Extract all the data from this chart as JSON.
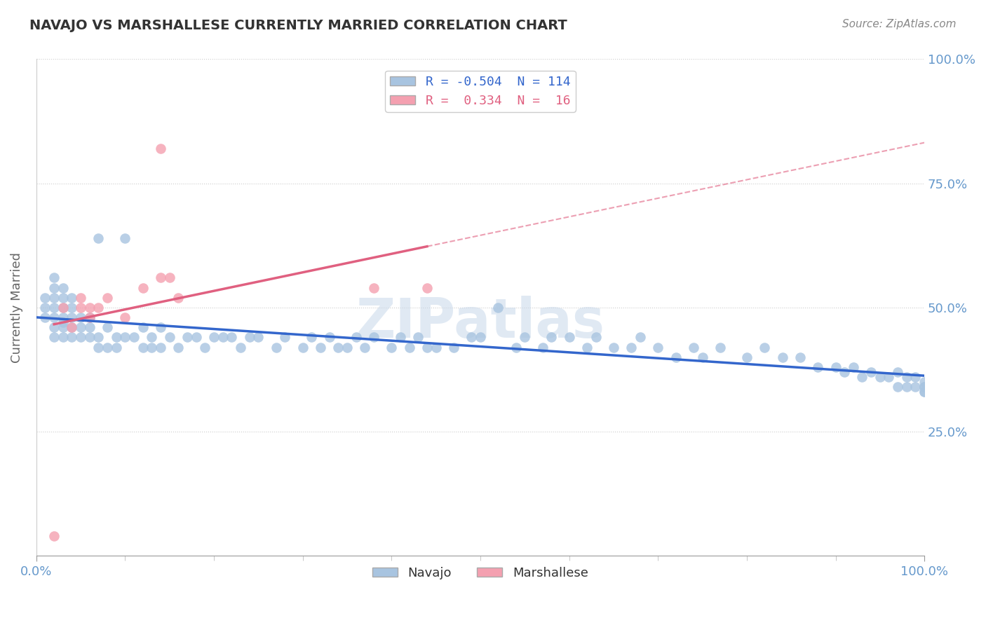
{
  "title": "NAVAJO VS MARSHALLESE CURRENTLY MARRIED CORRELATION CHART",
  "source": "Source: ZipAtlas.com",
  "ylabel": "Currently Married",
  "xlim": [
    0.0,
    1.0
  ],
  "ylim": [
    0.0,
    1.0
  ],
  "ytick_positions": [
    0.25,
    0.5,
    0.75,
    1.0
  ],
  "ytick_labels": [
    "25.0%",
    "50.0%",
    "75.0%",
    "100.0%"
  ],
  "navajo_R": -0.504,
  "navajo_N": 114,
  "marshallese_R": 0.334,
  "marshallese_N": 16,
  "navajo_color": "#a8c4e0",
  "marshallese_color": "#f4a0b0",
  "navajo_line_color": "#3366cc",
  "marshallese_line_color": "#e06080",
  "background_color": "#ffffff",
  "grid_color": "#cccccc",
  "title_color": "#333333",
  "axis_label_color": "#6699cc",
  "watermark": "ZIPatlas",
  "navajo_x": [
    0.01,
    0.01,
    0.01,
    0.02,
    0.02,
    0.02,
    0.02,
    0.02,
    0.02,
    0.02,
    0.03,
    0.03,
    0.03,
    0.03,
    0.03,
    0.03,
    0.03,
    0.04,
    0.04,
    0.04,
    0.04,
    0.04,
    0.05,
    0.05,
    0.05,
    0.06,
    0.06,
    0.06,
    0.07,
    0.07,
    0.07,
    0.08,
    0.08,
    0.09,
    0.09,
    0.1,
    0.1,
    0.11,
    0.12,
    0.12,
    0.13,
    0.13,
    0.14,
    0.14,
    0.15,
    0.16,
    0.17,
    0.18,
    0.19,
    0.2,
    0.21,
    0.22,
    0.23,
    0.24,
    0.25,
    0.27,
    0.28,
    0.3,
    0.31,
    0.32,
    0.33,
    0.34,
    0.35,
    0.36,
    0.37,
    0.38,
    0.4,
    0.41,
    0.42,
    0.43,
    0.44,
    0.45,
    0.47,
    0.49,
    0.5,
    0.52,
    0.54,
    0.55,
    0.57,
    0.58,
    0.6,
    0.62,
    0.63,
    0.65,
    0.67,
    0.68,
    0.7,
    0.72,
    0.74,
    0.75,
    0.77,
    0.8,
    0.82,
    0.84,
    0.86,
    0.88,
    0.9,
    0.91,
    0.92,
    0.93,
    0.94,
    0.95,
    0.96,
    0.97,
    0.97,
    0.98,
    0.98,
    0.99,
    0.99,
    1.0,
    1.0,
    1.0,
    1.0,
    1.0
  ],
  "navajo_y": [
    0.48,
    0.5,
    0.52,
    0.44,
    0.46,
    0.48,
    0.5,
    0.52,
    0.54,
    0.56,
    0.44,
    0.46,
    0.47,
    0.48,
    0.5,
    0.52,
    0.54,
    0.44,
    0.46,
    0.48,
    0.5,
    0.52,
    0.44,
    0.46,
    0.48,
    0.44,
    0.46,
    0.48,
    0.42,
    0.44,
    0.64,
    0.42,
    0.46,
    0.42,
    0.44,
    0.44,
    0.64,
    0.44,
    0.42,
    0.46,
    0.42,
    0.44,
    0.42,
    0.46,
    0.44,
    0.42,
    0.44,
    0.44,
    0.42,
    0.44,
    0.44,
    0.44,
    0.42,
    0.44,
    0.44,
    0.42,
    0.44,
    0.42,
    0.44,
    0.42,
    0.44,
    0.42,
    0.42,
    0.44,
    0.42,
    0.44,
    0.42,
    0.44,
    0.42,
    0.44,
    0.42,
    0.42,
    0.42,
    0.44,
    0.44,
    0.5,
    0.42,
    0.44,
    0.42,
    0.44,
    0.44,
    0.42,
    0.44,
    0.42,
    0.42,
    0.44,
    0.42,
    0.4,
    0.42,
    0.4,
    0.42,
    0.4,
    0.42,
    0.4,
    0.4,
    0.38,
    0.38,
    0.37,
    0.38,
    0.36,
    0.37,
    0.36,
    0.36,
    0.34,
    0.37,
    0.34,
    0.36,
    0.34,
    0.36,
    0.33,
    0.34,
    0.35,
    0.33,
    0.34
  ],
  "marshallese_x": [
    0.02,
    0.03,
    0.04,
    0.05,
    0.05,
    0.06,
    0.06,
    0.07,
    0.08,
    0.1,
    0.12,
    0.14,
    0.15,
    0.16,
    0.38,
    0.44
  ],
  "marshallese_y": [
    0.04,
    0.5,
    0.46,
    0.5,
    0.52,
    0.48,
    0.5,
    0.5,
    0.52,
    0.48,
    0.54,
    0.56,
    0.56,
    0.52,
    0.54,
    0.54
  ],
  "marshallese_outlier_x": [
    0.14
  ],
  "marshallese_outlier_y": [
    0.82
  ]
}
